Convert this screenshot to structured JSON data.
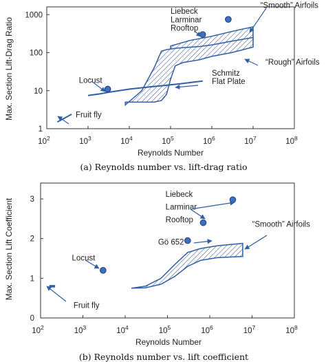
{
  "chart_data": [
    {
      "type": "line",
      "caption": "(a)  Reynolds number vs. lift-drag ratio",
      "xlabel": "Reynolds Number",
      "ylabel": "Max. Section Lift-Drag Ratio",
      "xscale": "log",
      "yscale": "log",
      "xlim": [
        100,
        100000000
      ],
      "ylim": [
        1,
        1600
      ],
      "grid": false,
      "x_ticks": [
        {
          "value": 100,
          "base": "10",
          "exp": "2"
        },
        {
          "value": 1000,
          "base": "10",
          "exp": "3"
        },
        {
          "value": 10000,
          "base": "10",
          "exp": "4"
        },
        {
          "value": 100000,
          "base": "10",
          "exp": "5"
        },
        {
          "value": 1000000,
          "base": "10",
          "exp": "6"
        },
        {
          "value": 10000000,
          "base": "10",
          "exp": "7"
        },
        {
          "value": 100000000,
          "base": "10",
          "exp": "8"
        }
      ],
      "y_ticks": [
        {
          "value": 1,
          "label": "1"
        },
        {
          "value": 10,
          "label": "10"
        },
        {
          "value": 100,
          "label": "100"
        },
        {
          "value": 1000,
          "label": "1000"
        }
      ],
      "series": [
        {
          "kind": "line",
          "x": [
            180,
            270,
            400
          ],
          "y": [
            1.5,
            1.9,
            2.4
          ]
        },
        {
          "kind": "line",
          "x": [
            1000,
            2000,
            3000,
            5000,
            10000,
            30000,
            60000,
            100000,
            200000,
            400000,
            600000
          ],
          "y": [
            7.5,
            8.3,
            9,
            9.8,
            11,
            12.5,
            13.5,
            14.2,
            15.5,
            17,
            18
          ]
        },
        {
          "kind": "band",
          "x": [
            100000,
            300000,
            1000000,
            3000000,
            10000000
          ],
          "y_low": [
            70,
            100,
            130,
            170,
            210
          ],
          "y_high": [
            150,
            210,
            270,
            360,
            480
          ]
        },
        {
          "kind": "band",
          "x": [
            8000,
            20000,
            40000,
            60000,
            80000,
            100000,
            130000,
            200000,
            500000,
            1000000,
            3000000,
            10000000
          ],
          "y_low": [
            5,
            5,
            5,
            5.5,
            8,
            20,
            45,
            55,
            65,
            80,
            100,
            140
          ],
          "y_high": [
            4.2,
            10,
            40,
            110,
            120,
            125,
            130,
            135,
            145,
            160,
            200,
            250
          ]
        }
      ],
      "points": [
        {
          "name": "Locust",
          "x": 3000,
          "y": 11
        },
        {
          "name": "Liebeck Larminar Rooftop",
          "x": 600000,
          "y": 300
        },
        {
          "name": "Liebeck Larminar Rooftop",
          "x": 2500000,
          "y": 750
        }
      ],
      "annotations": [
        {
          "text": "Fruit fly",
          "x": 500,
          "y": 2
        },
        {
          "text": "Locust",
          "x": 600,
          "y": 16
        },
        {
          "text": "Liebeck",
          "x": 100000,
          "y": 1050
        },
        {
          "text": "Larminar",
          "x": 100000,
          "y": 630
        },
        {
          "text": "Rooftop",
          "x": 100000,
          "y": 380
        },
        {
          "text": "“Smooth” Airfoils",
          "x": 15000000,
          "y": 1500
        },
        {
          "text": "“Rough” Airfoils",
          "x": 20000000,
          "y": 48
        },
        {
          "text": "Schmitz",
          "x": 1000000,
          "y": 25
        },
        {
          "text": "Flat Plate",
          "x": 1000000,
          "y": 15
        }
      ]
    },
    {
      "type": "scatter",
      "caption": "(b) Reynolds number vs. lift coefficient",
      "xlabel": "Reynolds Number",
      "ylabel": "Max. Section Lift Coefficient",
      "xscale": "log",
      "xlim": [
        100,
        100000000
      ],
      "ylim": [
        0,
        3.4
      ],
      "grid": false,
      "x_ticks": [
        {
          "value": 100,
          "base": "10",
          "exp": "2"
        },
        {
          "value": 1000,
          "base": "10",
          "exp": "3"
        },
        {
          "value": 10000,
          "base": "10",
          "exp": "4"
        },
        {
          "value": 100000,
          "base": "10",
          "exp": "5"
        },
        {
          "value": 1000000,
          "base": "10",
          "exp": "6"
        },
        {
          "value": 10000000,
          "base": "10",
          "exp": "7"
        },
        {
          "value": 100000000,
          "base": "10",
          "exp": "8"
        }
      ],
      "y_ticks": [
        {
          "value": 0,
          "label": "0"
        },
        {
          "value": 1,
          "label": "1"
        },
        {
          "value": 2,
          "label": "2"
        },
        {
          "value": 3,
          "label": "3"
        }
      ],
      "series": [
        {
          "kind": "band",
          "x": [
            14000,
            30000,
            70000,
            150000,
            300000,
            600000,
            1500000,
            6000000
          ],
          "y_low": [
            0.75,
            0.76,
            0.85,
            1.05,
            1.3,
            1.45,
            1.52,
            1.55
          ],
          "y_high": [
            0.75,
            0.8,
            1.0,
            1.35,
            1.65,
            1.75,
            1.82,
            1.88
          ]
        },
        {
          "kind": "line",
          "x": [
            160,
            220
          ],
          "y": [
            0.8,
            0.8
          ]
        }
      ],
      "points": [
        {
          "name": "Locust",
          "x": 3000,
          "y": 1.2
        },
        {
          "name": "Liebeck Larminar Rooftop",
          "x": 700000,
          "y": 2.4
        },
        {
          "name": "Liebeck Larminar Rooftop",
          "x": 3500000,
          "y": 2.98
        },
        {
          "name": "Gö 652",
          "x": 300000,
          "y": 1.95
        }
      ],
      "annotations": [
        {
          "text": "Locust",
          "x": 550,
          "y": 1.45
        },
        {
          "text": "Gö 652",
          "x": 60000,
          "y": 1.85
        },
        {
          "text": "Liebeck",
          "x": 90000,
          "y": 3.05
        },
        {
          "text": "Larminar",
          "x": 90000,
          "y": 2.73
        },
        {
          "text": "Rooftop",
          "x": 90000,
          "y": 2.41
        },
        {
          "text": "“Smooth” Airfoils",
          "x": 10000000,
          "y": 2.3
        },
        {
          "text": "Fruit fly",
          "x": 600,
          "y": 0.25
        }
      ]
    }
  ]
}
